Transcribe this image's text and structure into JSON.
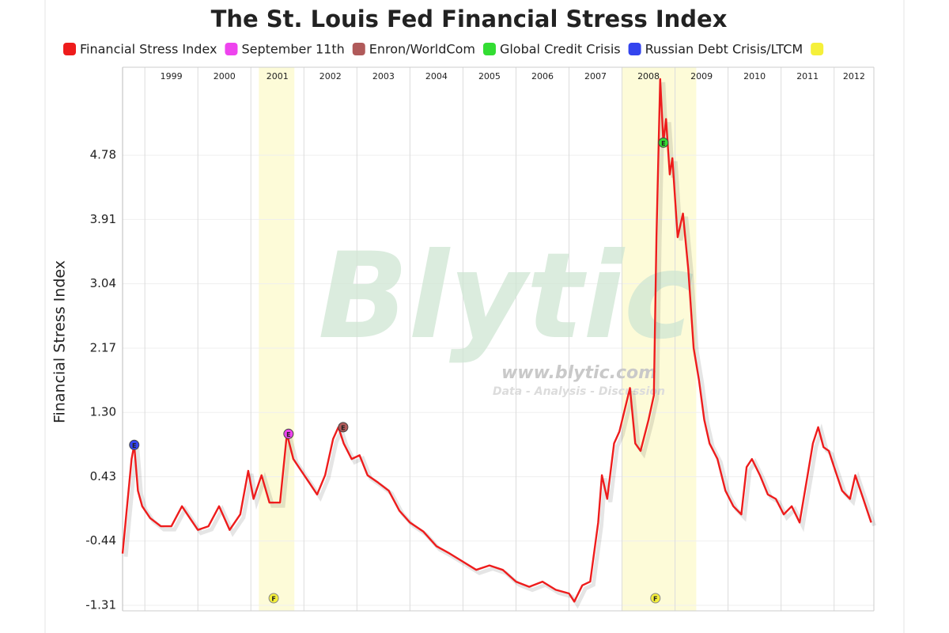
{
  "chart_data": {
    "type": "line",
    "title": "The St. Louis Fed Financial Stress Index",
    "ylabel": "Financial Stress Index",
    "x": [
      1998.58,
      1998.65,
      1998.75,
      1998.8,
      1998.87,
      1998.95,
      1999.1,
      1999.3,
      1999.5,
      1999.7,
      1999.85,
      2000.0,
      2000.2,
      2000.4,
      2000.6,
      2000.8,
      2000.95,
      2001.05,
      2001.2,
      2001.35,
      2001.55,
      2001.68,
      2001.8,
      2001.95,
      2002.1,
      2002.25,
      2002.4,
      2002.55,
      2002.65,
      2002.75,
      2002.9,
      2003.05,
      2003.2,
      2003.4,
      2003.6,
      2003.8,
      2004.0,
      2004.25,
      2004.5,
      2004.75,
      2005.0,
      2005.25,
      2005.5,
      2005.75,
      2006.0,
      2006.25,
      2006.5,
      2006.75,
      2007.0,
      2007.1,
      2007.25,
      2007.4,
      2007.55,
      2007.62,
      2007.72,
      2007.85,
      2007.95,
      2008.15,
      2008.25,
      2008.35,
      2008.5,
      2008.6,
      2008.65,
      2008.72,
      2008.78,
      2008.83,
      2008.9,
      2008.95,
      2009.05,
      2009.15,
      2009.25,
      2009.35,
      2009.45,
      2009.55,
      2009.65,
      2009.8,
      2009.95,
      2010.1,
      2010.25,
      2010.35,
      2010.45,
      2010.6,
      2010.75,
      2010.9,
      2011.05,
      2011.2,
      2011.35,
      2011.5,
      2011.6,
      2011.7,
      2011.8,
      2011.9,
      2012.0,
      2012.15,
      2012.3,
      2012.4,
      2012.55,
      2012.7
    ],
    "series": [
      {
        "name": "Financial Stress Index",
        "color": "#ee1c1c",
        "values": [
          -0.61,
          -0.08,
          0.67,
          0.86,
          0.24,
          0.03,
          -0.13,
          -0.24,
          -0.24,
          0.03,
          -0.13,
          -0.29,
          -0.24,
          0.03,
          -0.29,
          -0.08,
          0.51,
          0.13,
          0.45,
          0.08,
          0.08,
          1.01,
          0.67,
          0.51,
          0.35,
          0.19,
          0.45,
          0.94,
          1.1,
          0.88,
          0.67,
          0.72,
          0.45,
          0.35,
          0.24,
          -0.03,
          -0.19,
          -0.31,
          -0.51,
          -0.61,
          -0.72,
          -0.83,
          -0.77,
          -0.83,
          -0.99,
          -1.06,
          -0.99,
          -1.1,
          -1.15,
          -1.26,
          -1.04,
          -0.99,
          -0.19,
          0.45,
          0.13,
          0.88,
          1.04,
          1.63,
          0.88,
          0.78,
          1.2,
          1.53,
          3.67,
          5.81,
          4.95,
          5.27,
          4.52,
          4.74,
          3.67,
          3.99,
          3.24,
          2.17,
          1.74,
          1.2,
          0.88,
          0.67,
          0.24,
          0.03,
          -0.08,
          0.56,
          0.67,
          0.45,
          0.19,
          0.13,
          -0.08,
          0.03,
          -0.19,
          0.45,
          0.88,
          1.1,
          0.83,
          0.78,
          0.56,
          0.24,
          0.13,
          0.45,
          0.13,
          -0.19
        ]
      }
    ],
    "events": [
      {
        "name": "September 11th",
        "color": "#ee44ee",
        "x": 2001.71,
        "y": 1.01,
        "label": "E"
      },
      {
        "name": "Enron/WorldCom",
        "color": "#b05a5a",
        "x": 2002.74,
        "y": 1.1,
        "label": "E"
      },
      {
        "name": "Global Credit Crisis",
        "color": "#33dd33",
        "x": 2008.78,
        "y": 4.95,
        "label": "E"
      },
      {
        "name": "Russian Debt Crisis/LTCM",
        "color": "#3344ee",
        "x": 1998.8,
        "y": 0.86,
        "label": "E"
      }
    ],
    "flag_color": "#f5f03a",
    "flags": [
      {
        "x": 2001.43,
        "label": "F"
      },
      {
        "x": 2008.63,
        "label": "F"
      }
    ],
    "shaded": [
      [
        2001.15,
        2001.82
      ],
      [
        2007.99,
        2009.4
      ]
    ],
    "watermark": {
      "text": "Blytic",
      "url": "www.blytic.com",
      "tagline": "Data - Analysis - Discussion"
    },
    "xlim": [
      1998.58,
      2012.75
    ],
    "xticks": [
      1999,
      2000,
      2001,
      2002,
      2003,
      2004,
      2005,
      2006,
      2007,
      2008,
      2009,
      2010,
      2011,
      2012
    ],
    "ylim": [
      -1.385,
      5.97
    ],
    "yticks": [
      -1.31,
      -0.44,
      0.43,
      {
        "value": 1.3,
        "label": "1.30"
      },
      2.17,
      3.04,
      3.91,
      4.78
    ],
    "grid": true
  }
}
